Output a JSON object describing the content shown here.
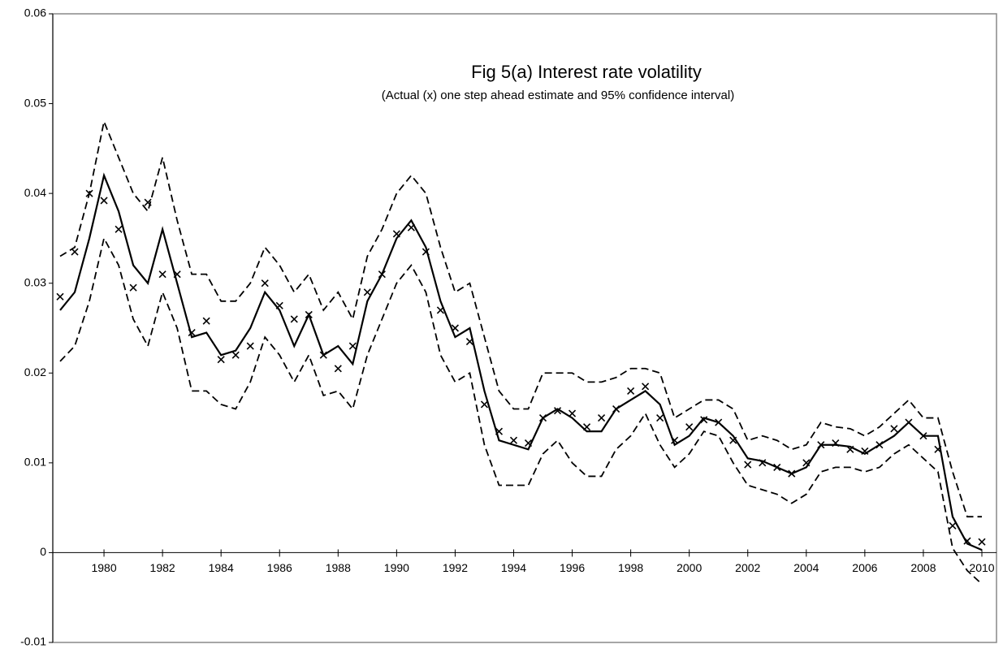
{
  "chart_data": {
    "type": "line",
    "title": "Fig 5(a) Interest rate volatility",
    "subtitle": "(Actual (x) one step ahead estimate and 95% confidence interval)",
    "x": [
      1978.5,
      1979,
      1979.5,
      1980,
      1980.5,
      1981,
      1981.5,
      1982,
      1982.5,
      1983,
      1983.5,
      1984,
      1984.5,
      1985,
      1985.5,
      1986,
      1986.5,
      1987,
      1987.5,
      1988,
      1988.5,
      1989,
      1989.5,
      1990,
      1990.5,
      1991,
      1991.5,
      1992,
      1992.5,
      1993,
      1993.5,
      1994,
      1994.5,
      1995,
      1995.5,
      1996,
      1996.5,
      1997,
      1997.5,
      1998,
      1998.5,
      1999,
      1999.5,
      2000,
      2000.5,
      2001,
      2001.5,
      2002,
      2002.5,
      2003,
      2003.5,
      2004,
      2004.5,
      2005,
      2005.5,
      2006,
      2006.5,
      2007,
      2007.5,
      2008,
      2008.5,
      2009,
      2009.5,
      2010
    ],
    "series": [
      {
        "color": "#000000",
        "style": "dashed",
        "values": [
          0.033,
          0.034,
          0.04,
          0.048,
          0.044,
          0.04,
          0.038,
          0.044,
          0.037,
          0.031,
          0.031,
          0.028,
          0.028,
          0.03,
          0.034,
          0.032,
          0.029,
          0.031,
          0.027,
          0.029,
          0.026,
          0.033,
          0.036,
          0.04,
          0.042,
          0.04,
          0.034,
          0.029,
          0.03,
          0.024,
          0.018,
          0.016,
          0.016,
          0.02,
          0.02,
          0.02,
          0.019,
          0.019,
          0.0195,
          0.0205,
          0.0205,
          0.02,
          0.015,
          0.016,
          0.017,
          0.017,
          0.016,
          0.0125,
          0.013,
          0.0125,
          0.0115,
          0.012,
          0.0145,
          0.014,
          0.0138,
          0.013,
          0.014,
          0.0155,
          0.017,
          0.015,
          0.015,
          0.009,
          0.004,
          0.004
        ]
      },
      {
        "color": "#000000",
        "style": "dashed",
        "values": [
          0.0213,
          0.023,
          0.028,
          0.035,
          0.032,
          0.026,
          0.023,
          0.029,
          0.025,
          0.018,
          0.018,
          0.0165,
          0.016,
          0.019,
          0.024,
          0.022,
          0.019,
          0.022,
          0.0175,
          0.018,
          0.016,
          0.022,
          0.026,
          0.03,
          0.032,
          0.029,
          0.022,
          0.019,
          0.02,
          0.012,
          0.0075,
          0.0075,
          0.0075,
          0.011,
          0.0125,
          0.01,
          0.0085,
          0.0085,
          0.0115,
          0.013,
          0.0155,
          0.012,
          0.0095,
          0.011,
          0.0135,
          0.013,
          0.01,
          0.0075,
          0.007,
          0.0065,
          0.0055,
          0.0065,
          0.009,
          0.0095,
          0.0095,
          0.009,
          0.0095,
          0.011,
          0.012,
          0.0105,
          0.009,
          0.0005,
          -0.002,
          -0.0035
        ]
      },
      {
        "color": "#000000",
        "style": "solid",
        "values": [
          0.027,
          0.029,
          0.035,
          0.042,
          0.038,
          0.032,
          0.03,
          0.036,
          0.03,
          0.024,
          0.0245,
          0.022,
          0.0225,
          0.025,
          0.029,
          0.027,
          0.023,
          0.0265,
          0.022,
          0.023,
          0.021,
          0.028,
          0.031,
          0.035,
          0.037,
          0.034,
          0.028,
          0.024,
          0.025,
          0.018,
          0.0125,
          0.012,
          0.0115,
          0.015,
          0.016,
          0.015,
          0.0135,
          0.0135,
          0.016,
          0.017,
          0.018,
          0.0165,
          0.012,
          0.013,
          0.015,
          0.0145,
          0.013,
          0.0105,
          0.0102,
          0.0095,
          0.0088,
          0.0095,
          0.012,
          0.012,
          0.0118,
          0.011,
          0.012,
          0.013,
          0.0145,
          0.013,
          0.013,
          0.004,
          0.001,
          0.0003
        ]
      },
      {
        "color": "#000000",
        "style": "markers",
        "values": [
          0.0285,
          0.0335,
          0.04,
          0.0392,
          0.036,
          0.0295,
          0.039,
          0.031,
          0.031,
          0.0245,
          0.0258,
          0.0215,
          0.022,
          0.023,
          0.03,
          0.0275,
          0.026,
          0.0265,
          0.022,
          0.0205,
          0.023,
          0.029,
          0.031,
          0.0355,
          0.0362,
          0.0335,
          0.027,
          0.025,
          0.0235,
          0.0165,
          0.0135,
          0.0125,
          0.0122,
          0.015,
          0.0158,
          0.0155,
          0.014,
          0.015,
          0.016,
          0.018,
          0.0185,
          0.015,
          0.0125,
          0.014,
          0.0148,
          0.0145,
          0.0125,
          0.0098,
          0.01,
          0.0095,
          0.0088,
          0.01,
          0.012,
          0.0122,
          0.0115,
          0.0113,
          0.012,
          0.0138,
          0.0145,
          0.013,
          0.0115,
          0.003,
          0.0013,
          0.0012
        ]
      }
    ],
    "xlim": [
      1978.25,
      2010.5
    ],
    "xticks": [
      1980,
      1982,
      1984,
      1986,
      1988,
      1990,
      1992,
      1994,
      1996,
      1998,
      2000,
      2002,
      2004,
      2006,
      2008,
      2010
    ],
    "ylim": [
      -0.01,
      0.06
    ],
    "yticks": [
      -0.01,
      0,
      0.01,
      0.02,
      0.03,
      0.04,
      0.05,
      0.06
    ]
  }
}
